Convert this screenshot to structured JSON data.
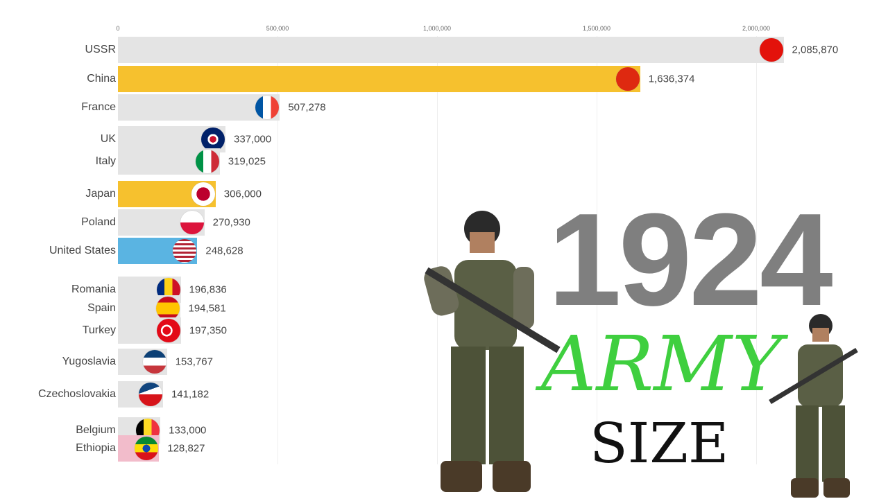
{
  "chart_data": {
    "type": "bar",
    "orientation": "horizontal",
    "title": "",
    "xlim": [
      0,
      2100000
    ],
    "x_ticks": [
      "0",
      "500,000",
      "1,000,000",
      "1,500,000",
      "2,000,000"
    ],
    "x_tick_values": [
      0,
      500000,
      1000000,
      1500000,
      2000000
    ],
    "grid": true,
    "categories": [
      "USSR",
      "China",
      "France",
      "UK",
      "Italy",
      "Japan",
      "Poland",
      "United States",
      "Romania",
      "Spain",
      "Turkey",
      "Yugoslavia",
      "Czechoslovakia",
      "Belgium",
      "Ethiopia"
    ],
    "values": [
      2085870,
      1636374,
      507278,
      337000,
      319025,
      306000,
      270930,
      248628,
      196836,
      194581,
      197350,
      153767,
      141182,
      133000,
      128827
    ],
    "value_labels": [
      "2,085,870",
      "1,636,374",
      "507,278",
      "337,000",
      "319,025",
      "306,000",
      "270,930",
      "248,628",
      "196,836",
      "194,581",
      "197,350",
      "153,767",
      "141,182",
      "133,000",
      "128,827"
    ],
    "bar_colors": [
      "#e4e4e4",
      "#f6c12e",
      "#e4e4e4",
      "#e4e4e4",
      "#e4e4e4",
      "#f6c12e",
      "#e4e4e4",
      "#5ab4e2",
      "#e4e4e4",
      "#e4e4e4",
      "#e4e4e4",
      "#e4e4e4",
      "#e4e4e4",
      "#e4e4e4",
      "#f2bccb"
    ],
    "flag_icons": [
      "ussr-flag-icon",
      "china-flag-icon",
      "france-flag-icon",
      "uk-flag-icon",
      "italy-flag-icon",
      "japan-flag-icon",
      "poland-flag-icon",
      "usa-flag-icon",
      "romania-flag-icon",
      "spain-flag-icon",
      "turkey-flag-icon",
      "yugoslavia-flag-icon",
      "czechoslovakia-flag-icon",
      "belgium-flag-icon",
      "ethiopia-flag-icon"
    ]
  },
  "overlay": {
    "year": "1924",
    "title_line1": "ARMY",
    "title_line2": "SIZE"
  }
}
